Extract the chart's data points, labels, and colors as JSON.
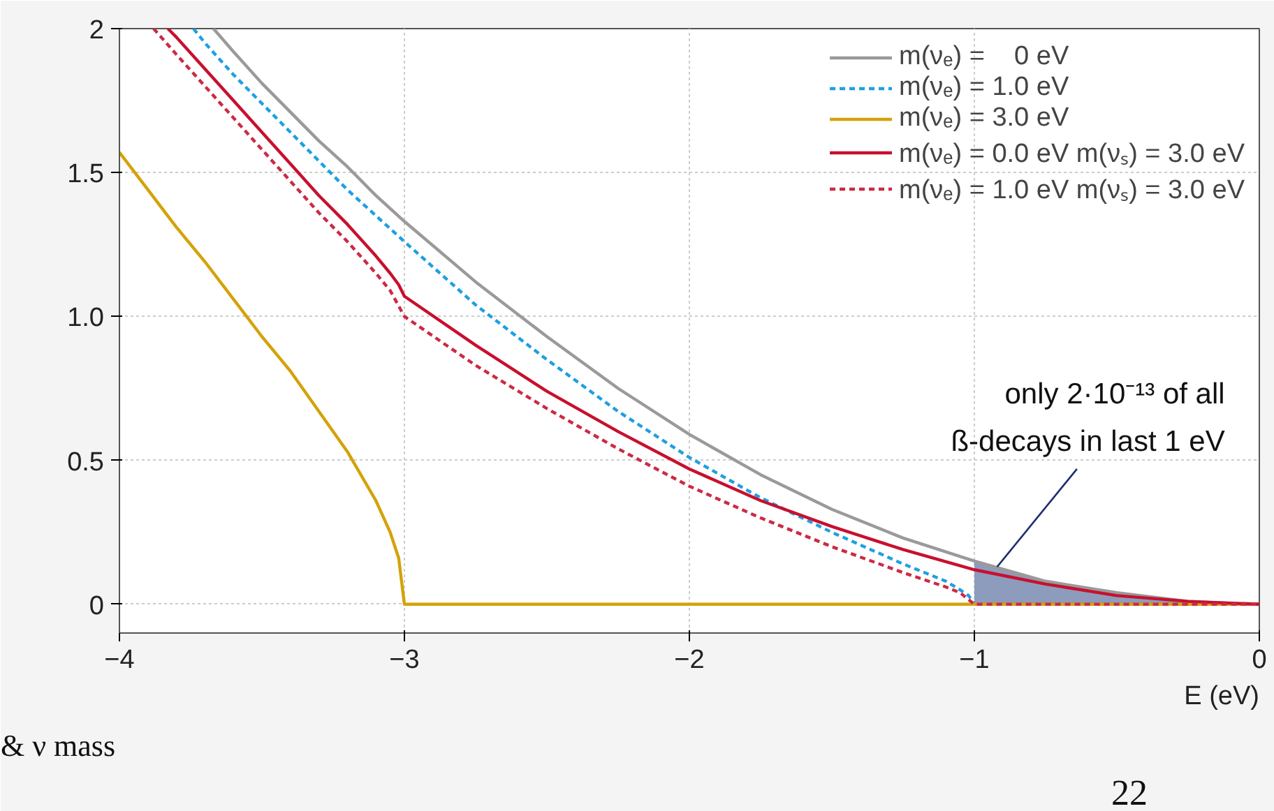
{
  "chart_data": {
    "type": "line",
    "xlabel": "E (eV)",
    "xlim": [
      -4,
      0
    ],
    "ylim": [
      -0.1,
      2
    ],
    "xticks": [
      -4,
      -3,
      -2,
      -1,
      0
    ],
    "yticks": [
      0,
      {
        "value": 0.5,
        "label": "0.5"
      },
      {
        "value": 1,
        "label": "1.0"
      },
      {
        "value": 1.5,
        "label": "1.5"
      },
      2
    ],
    "grid": true,
    "legend": "top right",
    "series": [
      {
        "name": "m(νₑ) =    0 eV",
        "color": "#9a9a9a",
        "line_style": "solid",
        "x": [
          -3.67,
          -3.6,
          -3.5,
          -3.4,
          -3.3,
          -3.2,
          -3.1,
          -3.0,
          -2.75,
          -2.5,
          -2.25,
          -2.0,
          -1.75,
          -1.5,
          -1.25,
          -1.0,
          -0.75,
          -0.5,
          -0.25,
          0
        ],
        "values": [
          2.0,
          1.92,
          1.81,
          1.71,
          1.61,
          1.52,
          1.42,
          1.33,
          1.12,
          0.93,
          0.75,
          0.59,
          0.45,
          0.33,
          0.23,
          0.15,
          0.08,
          0.04,
          0.01,
          0
        ]
      },
      {
        "name": "m(νₑ) = 1.0 eV",
        "color": "#1ea0e0",
        "line_style": "dashed",
        "x": [
          -3.74,
          -3.7,
          -3.6,
          -3.5,
          -3.4,
          -3.3,
          -3.2,
          -3.1,
          -3.0,
          -2.75,
          -2.5,
          -2.25,
          -2.0,
          -1.75,
          -1.5,
          -1.25,
          -1.1,
          -1.05,
          -1.02,
          -1.0,
          0
        ],
        "values": [
          2.0,
          1.95,
          1.84,
          1.74,
          1.64,
          1.54,
          1.44,
          1.35,
          1.26,
          1.04,
          0.85,
          0.67,
          0.51,
          0.37,
          0.25,
          0.14,
          0.08,
          0.05,
          0.03,
          0,
          0
        ]
      },
      {
        "name": "m(νₑ) = 3.0 eV",
        "color": "#d4a20a",
        "line_style": "solid",
        "x": [
          -4.0,
          -3.9,
          -3.8,
          -3.7,
          -3.6,
          -3.5,
          -3.4,
          -3.3,
          -3.2,
          -3.1,
          -3.05,
          -3.02,
          -3.0,
          0
        ],
        "values": [
          1.57,
          1.44,
          1.31,
          1.19,
          1.06,
          0.93,
          0.81,
          0.67,
          0.53,
          0.36,
          0.25,
          0.16,
          0,
          0
        ]
      },
      {
        "name": "m(νₑ) = 0.0 eV m(νₛ) = 3.0 eV",
        "color": "#c8102e",
        "line_style": "solid",
        "x": [
          -3.83,
          -3.8,
          -3.7,
          -3.6,
          -3.5,
          -3.4,
          -3.3,
          -3.2,
          -3.1,
          -3.05,
          -3.02,
          -3.0,
          -2.75,
          -2.5,
          -2.25,
          -2.0,
          -1.75,
          -1.5,
          -1.25,
          -1.0,
          -0.75,
          -0.5,
          -0.25,
          0
        ],
        "values": [
          2.0,
          1.97,
          1.86,
          1.75,
          1.64,
          1.53,
          1.42,
          1.32,
          1.21,
          1.15,
          1.11,
          1.07,
          0.9,
          0.74,
          0.6,
          0.47,
          0.36,
          0.27,
          0.19,
          0.12,
          0.07,
          0.03,
          0.01,
          0
        ]
      },
      {
        "name": "m(νₑ) = 1.0 eV m(νₛ) = 3.0 eV",
        "color": "#cc2a44",
        "line_style": "dashed",
        "x": [
          -3.88,
          -3.8,
          -3.7,
          -3.6,
          -3.5,
          -3.4,
          -3.3,
          -3.2,
          -3.1,
          -3.05,
          -3.0,
          -2.75,
          -2.5,
          -2.25,
          -2.0,
          -1.75,
          -1.5,
          -1.25,
          -1.1,
          -1.05,
          -1.0,
          0
        ],
        "values": [
          2.0,
          1.91,
          1.8,
          1.69,
          1.58,
          1.47,
          1.36,
          1.26,
          1.15,
          1.09,
          1.0,
          0.83,
          0.68,
          0.54,
          0.41,
          0.3,
          0.2,
          0.11,
          0.06,
          0.04,
          0,
          0
        ]
      },
      {
        "type": "area",
        "color": "#8d9cbd",
        "x": [
          -1.0,
          -0.75,
          -0.5,
          -0.25,
          0
        ],
        "values": [
          0.15,
          0.08,
          0.04,
          0.01,
          0
        ]
      }
    ],
    "annotations": [
      {
        "text": "only 2·10⁻¹³ of all\nß-decays in last 1 eV",
        "x": -0.92,
        "y": 0.13
      },
      "& ν mass",
      "22"
    ]
  }
}
